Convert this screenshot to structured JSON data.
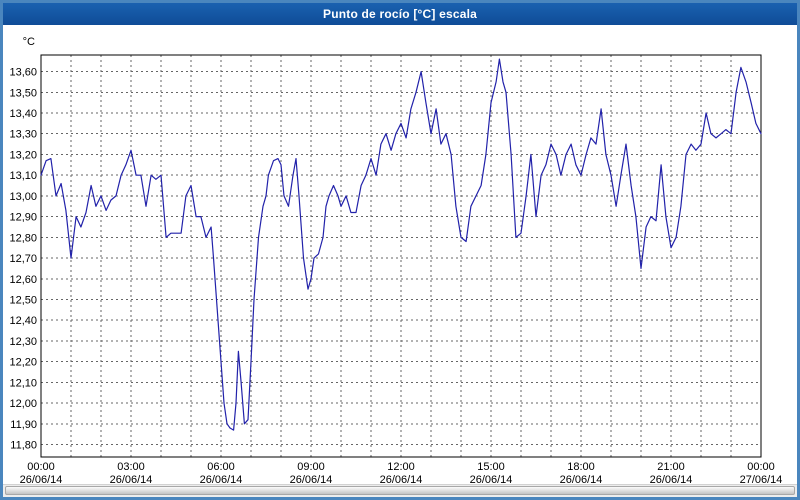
{
  "window": {
    "title": "Punto de rocío [°C] escala"
  },
  "scrollbar": {
    "present": true
  },
  "chart_data": {
    "type": "line",
    "title": "Punto de rocío [°C] escala",
    "ylabel": "°C",
    "line_color": "#2222AA",
    "grid_color": "#666666",
    "frame_color": "#000000",
    "ylim": [
      11.74,
      13.68
    ],
    "xlim": [
      0,
      24
    ],
    "grid": {
      "horizontal_step": 0.1,
      "vertical_step_hours": 1
    },
    "y_ticks": [
      {
        "v": 13.6,
        "label": "13,60"
      },
      {
        "v": 13.5,
        "label": "13,50"
      },
      {
        "v": 13.4,
        "label": "13,40"
      },
      {
        "v": 13.3,
        "label": "13,30"
      },
      {
        "v": 13.2,
        "label": "13,20"
      },
      {
        "v": 13.1,
        "label": "13,10"
      },
      {
        "v": 13.0,
        "label": "13,00"
      },
      {
        "v": 12.9,
        "label": "12,90"
      },
      {
        "v": 12.8,
        "label": "12,80"
      },
      {
        "v": 12.7,
        "label": "12,70"
      },
      {
        "v": 12.6,
        "label": "12,60"
      },
      {
        "v": 12.5,
        "label": "12,50"
      },
      {
        "v": 12.4,
        "label": "12,40"
      },
      {
        "v": 12.3,
        "label": "12,30"
      },
      {
        "v": 12.2,
        "label": "12,20"
      },
      {
        "v": 12.1,
        "label": "12,10"
      },
      {
        "v": 12.0,
        "label": "12,00"
      },
      {
        "v": 11.9,
        "label": "11,90"
      },
      {
        "v": 11.8,
        "label": "11,80"
      }
    ],
    "x_ticks": [
      {
        "h": 0,
        "time": "00:00",
        "date": "26/06/14"
      },
      {
        "h": 3,
        "time": "03:00",
        "date": "26/06/14"
      },
      {
        "h": 6,
        "time": "06:00",
        "date": "26/06/14"
      },
      {
        "h": 9,
        "time": "09:00",
        "date": "26/06/14"
      },
      {
        "h": 12,
        "time": "12:00",
        "date": "26/06/14"
      },
      {
        "h": 15,
        "time": "15:00",
        "date": "26/06/14"
      },
      {
        "h": 18,
        "time": "18:00",
        "date": "26/06/14"
      },
      {
        "h": 21,
        "time": "21:00",
        "date": "26/06/14"
      },
      {
        "h": 24,
        "time": "00:00",
        "date": "27/06/14"
      }
    ],
    "series": [
      {
        "name": "Punto de rocío",
        "points": [
          [
            0,
            13.1
          ],
          [
            0.17,
            13.17
          ],
          [
            0.33,
            13.18
          ],
          [
            0.5,
            13.0
          ],
          [
            0.67,
            13.06
          ],
          [
            0.83,
            12.93
          ],
          [
            1,
            12.7
          ],
          [
            1.17,
            12.9
          ],
          [
            1.33,
            12.85
          ],
          [
            1.5,
            12.92
          ],
          [
            1.67,
            13.05
          ],
          [
            1.83,
            12.95
          ],
          [
            2,
            13.0
          ],
          [
            2.17,
            12.93
          ],
          [
            2.33,
            12.98
          ],
          [
            2.5,
            13.0
          ],
          [
            2.67,
            13.1
          ],
          [
            2.83,
            13.15
          ],
          [
            3,
            13.22
          ],
          [
            3.17,
            13.1
          ],
          [
            3.33,
            13.1
          ],
          [
            3.5,
            12.95
          ],
          [
            3.67,
            13.1
          ],
          [
            3.83,
            13.08
          ],
          [
            4,
            13.1
          ],
          [
            4.17,
            12.8
          ],
          [
            4.33,
            12.82
          ],
          [
            4.5,
            12.82
          ],
          [
            4.67,
            12.82
          ],
          [
            4.83,
            13.0
          ],
          [
            5,
            13.05
          ],
          [
            5.17,
            12.9
          ],
          [
            5.33,
            12.9
          ],
          [
            5.5,
            12.8
          ],
          [
            5.67,
            12.85
          ],
          [
            5.75,
            12.7
          ],
          [
            5.9,
            12.4
          ],
          [
            6,
            12.2
          ],
          [
            6.1,
            12.0
          ],
          [
            6.2,
            11.9
          ],
          [
            6.3,
            11.88
          ],
          [
            6.42,
            11.87
          ],
          [
            6.5,
            12.0
          ],
          [
            6.58,
            12.25
          ],
          [
            6.67,
            12.1
          ],
          [
            6.78,
            11.9
          ],
          [
            6.9,
            11.92
          ],
          [
            7,
            12.2
          ],
          [
            7.1,
            12.5
          ],
          [
            7.25,
            12.8
          ],
          [
            7.4,
            12.95
          ],
          [
            7.5,
            13.0
          ],
          [
            7.58,
            13.1
          ],
          [
            7.75,
            13.17
          ],
          [
            7.9,
            13.18
          ],
          [
            8,
            13.15
          ],
          [
            8.1,
            13.0
          ],
          [
            8.25,
            12.95
          ],
          [
            8.4,
            13.1
          ],
          [
            8.5,
            13.18
          ],
          [
            8.6,
            13.0
          ],
          [
            8.75,
            12.7
          ],
          [
            8.9,
            12.55
          ],
          [
            9,
            12.6
          ],
          [
            9.1,
            12.7
          ],
          [
            9.25,
            12.72
          ],
          [
            9.4,
            12.8
          ],
          [
            9.5,
            12.95
          ],
          [
            9.6,
            13.0
          ],
          [
            9.75,
            13.05
          ],
          [
            9.9,
            13.0
          ],
          [
            10,
            12.95
          ],
          [
            10.17,
            13.0
          ],
          [
            10.33,
            12.92
          ],
          [
            10.5,
            12.92
          ],
          [
            10.67,
            13.05
          ],
          [
            10.83,
            13.1
          ],
          [
            11,
            13.18
          ],
          [
            11.17,
            13.1
          ],
          [
            11.33,
            13.25
          ],
          [
            11.5,
            13.3
          ],
          [
            11.67,
            13.22
          ],
          [
            11.83,
            13.3
          ],
          [
            12,
            13.35
          ],
          [
            12.17,
            13.28
          ],
          [
            12.33,
            13.42
          ],
          [
            12.5,
            13.5
          ],
          [
            12.67,
            13.6
          ],
          [
            12.83,
            13.45
          ],
          [
            13,
            13.3
          ],
          [
            13.17,
            13.42
          ],
          [
            13.33,
            13.25
          ],
          [
            13.5,
            13.3
          ],
          [
            13.67,
            13.2
          ],
          [
            13.83,
            12.95
          ],
          [
            14,
            12.8
          ],
          [
            14.17,
            12.78
          ],
          [
            14.33,
            12.95
          ],
          [
            14.5,
            13.0
          ],
          [
            14.67,
            13.05
          ],
          [
            14.83,
            13.2
          ],
          [
            15,
            13.45
          ],
          [
            15.17,
            13.55
          ],
          [
            15.28,
            13.66
          ],
          [
            15.4,
            13.55
          ],
          [
            15.5,
            13.5
          ],
          [
            15.67,
            13.2
          ],
          [
            15.83,
            12.8
          ],
          [
            16,
            12.82
          ],
          [
            16.17,
            13.0
          ],
          [
            16.33,
            13.2
          ],
          [
            16.5,
            12.9
          ],
          [
            16.67,
            13.1
          ],
          [
            16.83,
            13.15
          ],
          [
            17,
            13.25
          ],
          [
            17.17,
            13.2
          ],
          [
            17.33,
            13.1
          ],
          [
            17.5,
            13.2
          ],
          [
            17.67,
            13.25
          ],
          [
            17.83,
            13.15
          ],
          [
            18,
            13.1
          ],
          [
            18.17,
            13.2
          ],
          [
            18.33,
            13.28
          ],
          [
            18.5,
            13.25
          ],
          [
            18.67,
            13.42
          ],
          [
            18.83,
            13.2
          ],
          [
            19,
            13.1
          ],
          [
            19.17,
            12.95
          ],
          [
            19.33,
            13.1
          ],
          [
            19.5,
            13.25
          ],
          [
            19.67,
            13.05
          ],
          [
            19.83,
            12.9
          ],
          [
            20,
            12.65
          ],
          [
            20.17,
            12.85
          ],
          [
            20.33,
            12.9
          ],
          [
            20.5,
            12.88
          ],
          [
            20.67,
            13.15
          ],
          [
            20.83,
            12.9
          ],
          [
            21,
            12.75
          ],
          [
            21.17,
            12.8
          ],
          [
            21.33,
            12.95
          ],
          [
            21.5,
            13.2
          ],
          [
            21.67,
            13.25
          ],
          [
            21.83,
            13.22
          ],
          [
            22,
            13.25
          ],
          [
            22.17,
            13.4
          ],
          [
            22.33,
            13.3
          ],
          [
            22.5,
            13.28
          ],
          [
            22.67,
            13.3
          ],
          [
            22.83,
            13.32
          ],
          [
            23,
            13.3
          ],
          [
            23.17,
            13.5
          ],
          [
            23.33,
            13.62
          ],
          [
            23.5,
            13.55
          ],
          [
            23.67,
            13.45
          ],
          [
            23.83,
            13.35
          ],
          [
            24,
            13.3
          ]
        ]
      }
    ]
  }
}
